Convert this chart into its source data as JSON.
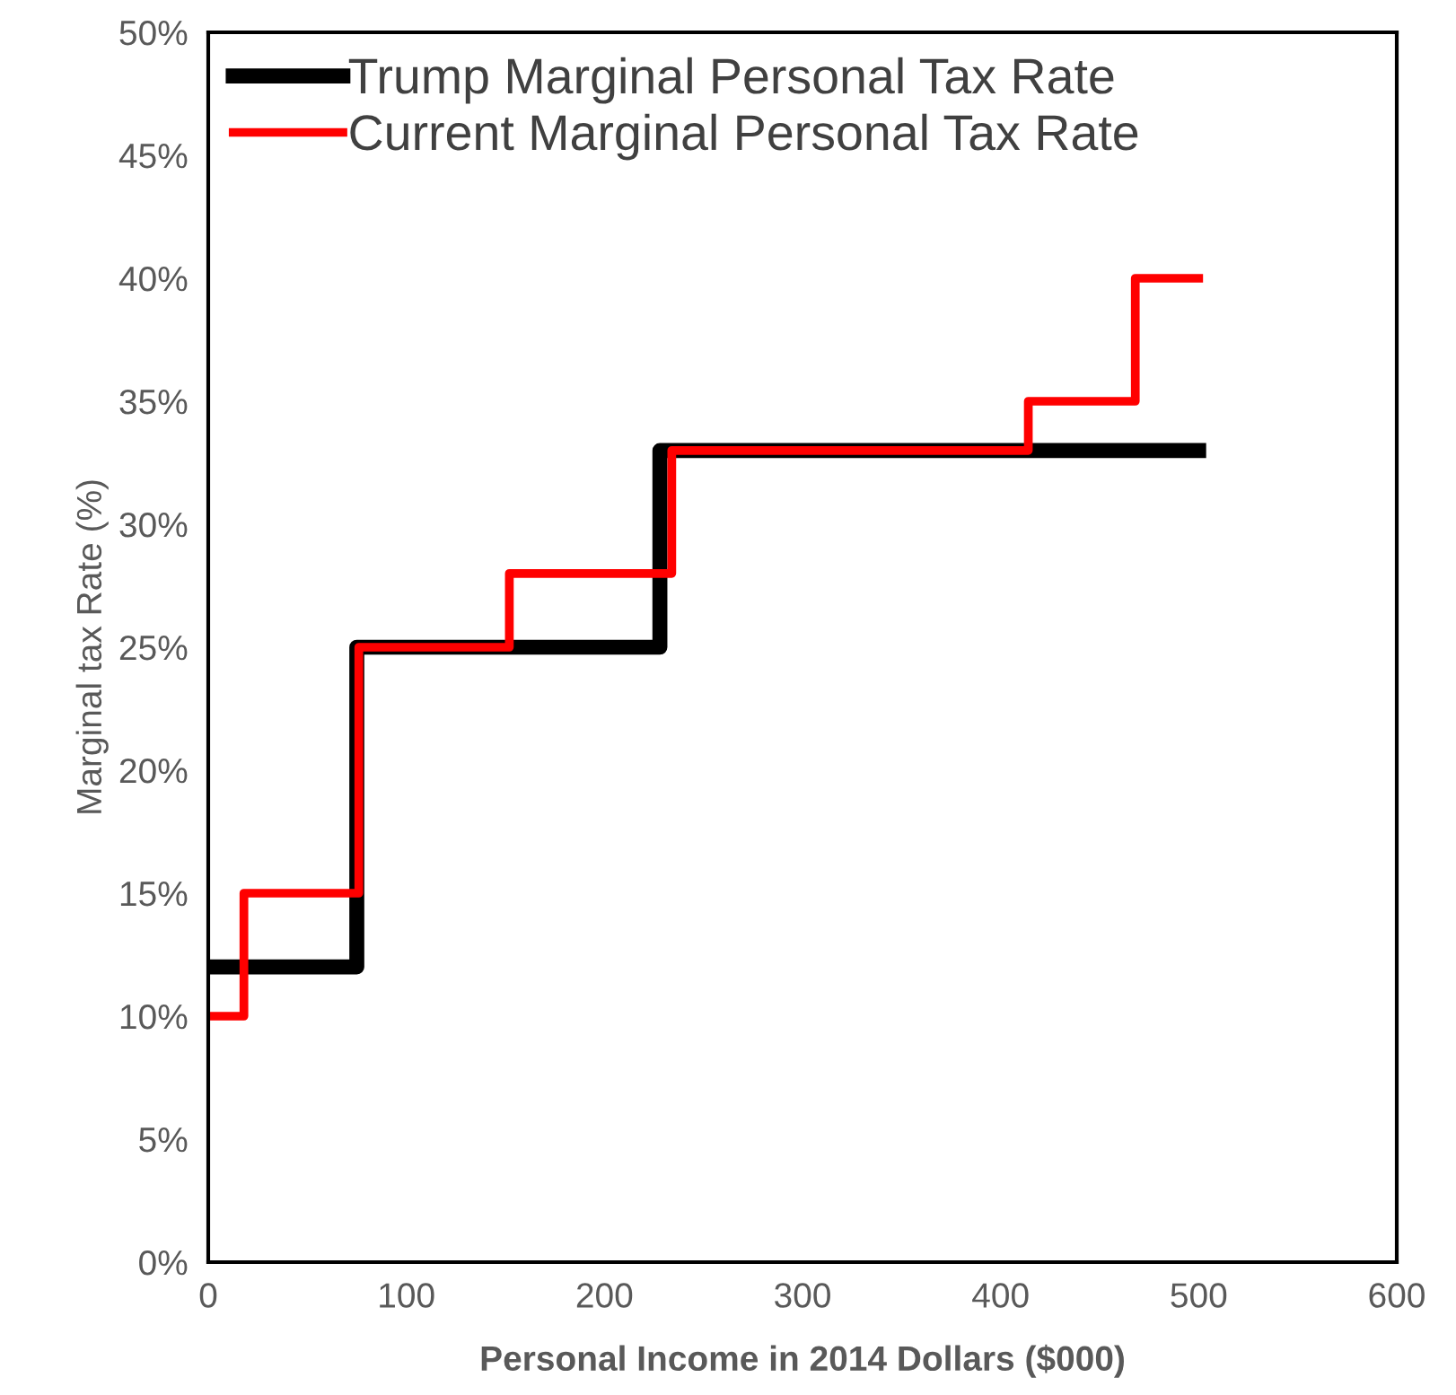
{
  "chart_data": {
    "type": "step",
    "xlabel": "Personal Income in 2014 Dollars ($000)",
    "ylabel": "Marginal tax Rate (%)",
    "series": [
      {
        "name": "Trump Marginal Personal Tax Rate",
        "color": "#000000",
        "x": [
          0,
          75,
          228,
          500
        ],
        "values": [
          12,
          25,
          33,
          33
        ]
      },
      {
        "name": "Current Marginal Personal Tax Rate",
        "color": "#ff0000",
        "x": [
          0,
          18,
          76,
          152,
          234,
          414,
          468,
          500
        ],
        "values": [
          10,
          15,
          25,
          28,
          33,
          35,
          40,
          40
        ]
      }
    ],
    "xlim": [
      0,
      600
    ],
    "xticks": [
      0,
      100,
      200,
      300,
      400,
      500,
      600
    ],
    "ylim": [
      0,
      50
    ],
    "yticks": [
      {
        "value": 0,
        "label": "0%"
      },
      {
        "value": 5,
        "label": "5%"
      },
      {
        "value": 10,
        "label": "10%"
      },
      {
        "value": 15,
        "label": "15%"
      },
      {
        "value": 20,
        "label": "20%"
      },
      {
        "value": 25,
        "label": "25%"
      },
      {
        "value": 30,
        "label": "30%"
      },
      {
        "value": 35,
        "label": "35%"
      },
      {
        "value": 40,
        "label": "40%"
      },
      {
        "value": 45,
        "label": "45%"
      },
      {
        "value": 50,
        "label": "50%"
      }
    ],
    "grid": false,
    "legend": "top left"
  }
}
